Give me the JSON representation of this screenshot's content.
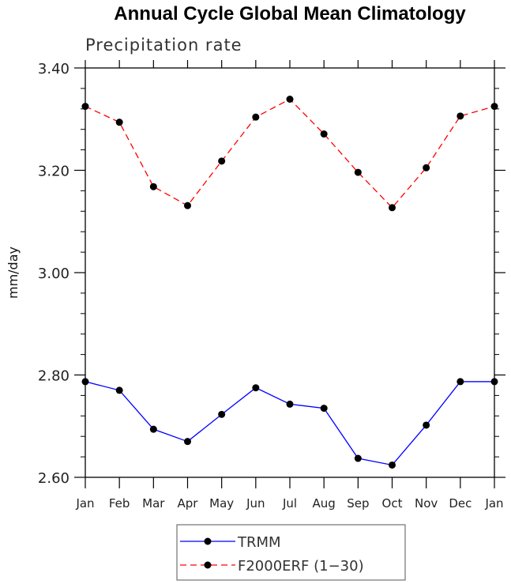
{
  "chart_data": {
    "type": "line",
    "title": "Annual Cycle Global Mean Climatology",
    "subtitle": "Precipitation rate",
    "xlabel": "",
    "ylabel": "mm/day",
    "categories": [
      "Jan",
      "Feb",
      "Mar",
      "Apr",
      "May",
      "Jun",
      "Jul",
      "Aug",
      "Sep",
      "Oct",
      "Nov",
      "Dec",
      "Jan"
    ],
    "ylim": [
      2.6,
      3.4
    ],
    "yticks": [
      "2.60",
      "2.80",
      "3.00",
      "3.20",
      "3.40"
    ],
    "ytick_values": [
      2.6,
      2.8,
      3.0,
      3.2,
      3.4
    ],
    "minor_tick_step": 0.04,
    "grid": false,
    "legend_position": "bottom-center",
    "series": [
      {
        "name": "TRMM",
        "color": "#0000ff",
        "dash": "solid",
        "values": [
          2.787,
          2.77,
          2.694,
          2.67,
          2.723,
          2.775,
          2.743,
          2.735,
          2.637,
          2.624,
          2.702,
          2.787,
          2.787
        ]
      },
      {
        "name": "F2000ERF (1−30)",
        "color": "#ff0000",
        "dash": "dashed",
        "values": [
          3.325,
          3.294,
          3.168,
          3.131,
          3.218,
          3.304,
          3.339,
          3.271,
          3.196,
          3.127,
          3.205,
          3.306,
          3.325
        ]
      }
    ]
  }
}
